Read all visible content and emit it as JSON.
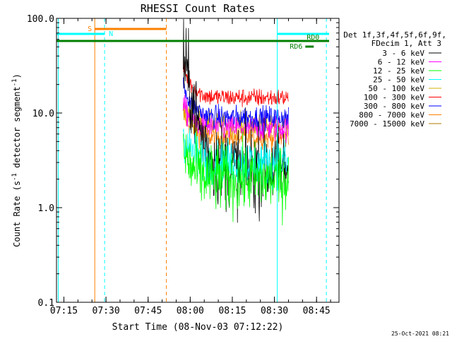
{
  "chart_data": {
    "type": "line",
    "title": "RHESSI Count Rates",
    "xlabel": "Start Time (08-Nov-03 07:12:22)",
    "ylabel_main": "Count Rate (s",
    "ylabel_sup1": "-1",
    "ylabel_mid": " detector segment",
    "ylabel_sup2": "-1",
    "ylabel_end": ")",
    "footer": "25-Oct-2021 08:21",
    "y_scale": "log",
    "ylim": [
      0.1,
      100.0
    ],
    "xlim": [
      "07:12:22",
      "08:53:00"
    ],
    "y_ticks": [
      {
        "value": 0.1,
        "label": "0.1"
      },
      {
        "value": 1.0,
        "label": "1.0"
      },
      {
        "value": 10.0,
        "label": "10.0"
      },
      {
        "value": 100.0,
        "label": "100.0"
      }
    ],
    "x_ticks": [
      {
        "value": "07:15",
        "label": "07:15"
      },
      {
        "value": "07:30",
        "label": "07:30"
      },
      {
        "value": "07:45",
        "label": "07:45"
      },
      {
        "value": "08:00",
        "label": "08:00"
      },
      {
        "value": "08:15",
        "label": "08:15"
      },
      {
        "value": "08:30",
        "label": "08:30"
      },
      {
        "value": "08:45",
        "label": "08:45"
      }
    ],
    "legend_header": [
      "Det 1f,3f,4f,5f,6f,9f,",
      "FDecim 1, Att 3"
    ],
    "legend_position": "right",
    "series": [
      {
        "name": "3 - 6 keV",
        "color": "#000000",
        "start": "07:57:30",
        "end": "08:35:00",
        "peak": 40,
        "level": 2.6,
        "noise": 0.22
      },
      {
        "name": "6 - 12 keV",
        "color": "#ff00ff",
        "start": "07:57:30",
        "end": "08:35:00",
        "peak": 12,
        "level": 7.0,
        "noise": 0.07
      },
      {
        "name": "12 - 25 keV",
        "color": "#00ff00",
        "start": "07:57:30",
        "end": "08:35:00",
        "peak": 4,
        "level": 2.0,
        "noise": 0.18
      },
      {
        "name": "25 - 50 keV",
        "color": "#00ffff",
        "start": "07:57:30",
        "end": "08:35:00",
        "peak": 6,
        "level": 3.0,
        "noise": 0.12
      },
      {
        "name": "50 - 100 keV",
        "color": "#d4b000",
        "start": "07:57:30",
        "end": "08:35:00",
        "peak": 12,
        "level": 7.5,
        "noise": 0.06
      },
      {
        "name": "100 - 300 keV",
        "color": "#ff0000",
        "start": "07:57:30",
        "end": "08:35:00",
        "peak": 30,
        "level": 14.5,
        "noise": 0.05
      },
      {
        "name": "300 - 800 keV",
        "color": "#0000ff",
        "start": "07:57:30",
        "end": "08:35:00",
        "peak": 20,
        "level": 9.0,
        "noise": 0.06
      },
      {
        "name": "800 - 7000 keV",
        "color": "#ff8000",
        "start": "07:57:30",
        "end": "08:35:00",
        "peak": 10,
        "level": 5.5,
        "noise": 0.06
      },
      {
        "name": "7000 - 15000 keV",
        "color": "#b07800",
        "start": "07:57:30",
        "end": "08:35:00",
        "peak": null,
        "level": null,
        "noise": null
      }
    ],
    "vertical_lines": [
      {
        "t": "07:13:00",
        "color": "#00ffff",
        "dashed": false
      },
      {
        "t": "07:26:00",
        "color": "#ff8000",
        "dashed": false
      },
      {
        "t": "07:29:30",
        "color": "#00ffff",
        "dashed": true
      },
      {
        "t": "07:51:30",
        "color": "#ff8000",
        "dashed": true
      },
      {
        "t": "08:31:00",
        "color": "#00ffff",
        "dashed": false
      },
      {
        "t": "08:48:30",
        "color": "#00ffff",
        "dashed": true
      }
    ],
    "flag_bars": [
      {
        "label": "S",
        "color": "#ff8000",
        "t0": "07:26:00",
        "t1": "07:51:30",
        "y": 75,
        "label_side": "left"
      },
      {
        "label": "N",
        "color": "#00ffff",
        "t0": "07:12:22",
        "t1": "07:29:30",
        "y": 66,
        "label_side": "right"
      },
      {
        "label": "",
        "color": "#007f00",
        "t0": "07:12:22",
        "t1": "08:53:00",
        "y": 57,
        "label_side": "none"
      },
      {
        "label": "",
        "color": "#00ffff",
        "t0": "08:31:00",
        "t1": "08:53:00",
        "y": 66,
        "label_side": "none"
      },
      {
        "label": "RD0",
        "color": "#007f00",
        "t0": "08:43:00",
        "t1": "08:53:00",
        "y": 57,
        "label_side": "above"
      },
      {
        "label": "RD6",
        "color": "#007f00",
        "t0": "08:41:00",
        "t1": "08:44:00",
        "y": 51,
        "label_side": "left"
      }
    ]
  }
}
